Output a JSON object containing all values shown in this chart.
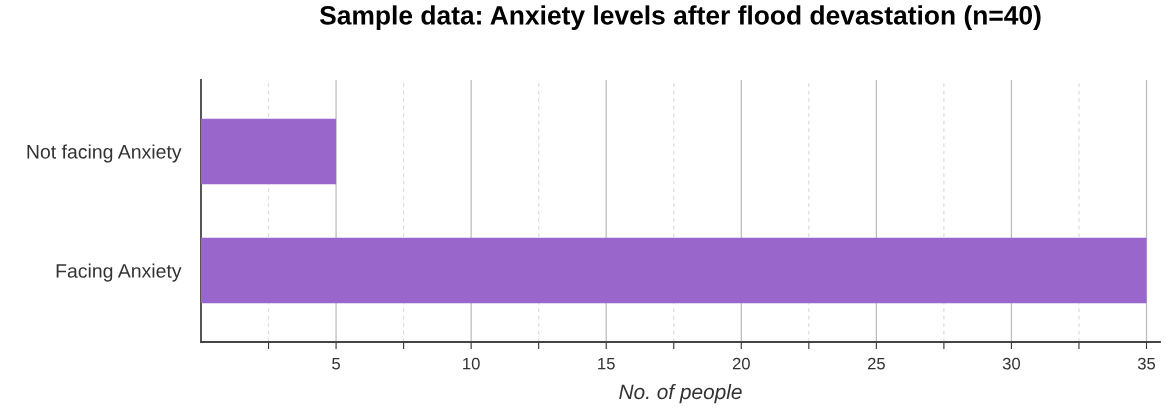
{
  "chart_data": {
    "type": "bar",
    "orientation": "horizontal",
    "title": "Sample data: Anxiety levels after flood devastation (n=40)",
    "xlabel": "No. of people",
    "categories": [
      "Not facing Anxiety",
      "Facing Anxiety"
    ],
    "values": [
      5,
      35
    ],
    "color": "#9966cc",
    "xlim": [
      0,
      35.5
    ],
    "xticks": [
      {
        "value": 2.5,
        "label": null
      },
      5,
      {
        "value": 7.5,
        "label": null
      },
      10,
      {
        "value": 12.5,
        "label": null
      },
      15,
      {
        "value": 17.5,
        "label": null
      },
      20,
      {
        "value": 22.5,
        "label": null
      },
      25,
      {
        "value": 27.5,
        "label": null
      },
      30,
      {
        "value": 32.5,
        "label": null
      },
      35
    ],
    "grid": "x"
  }
}
